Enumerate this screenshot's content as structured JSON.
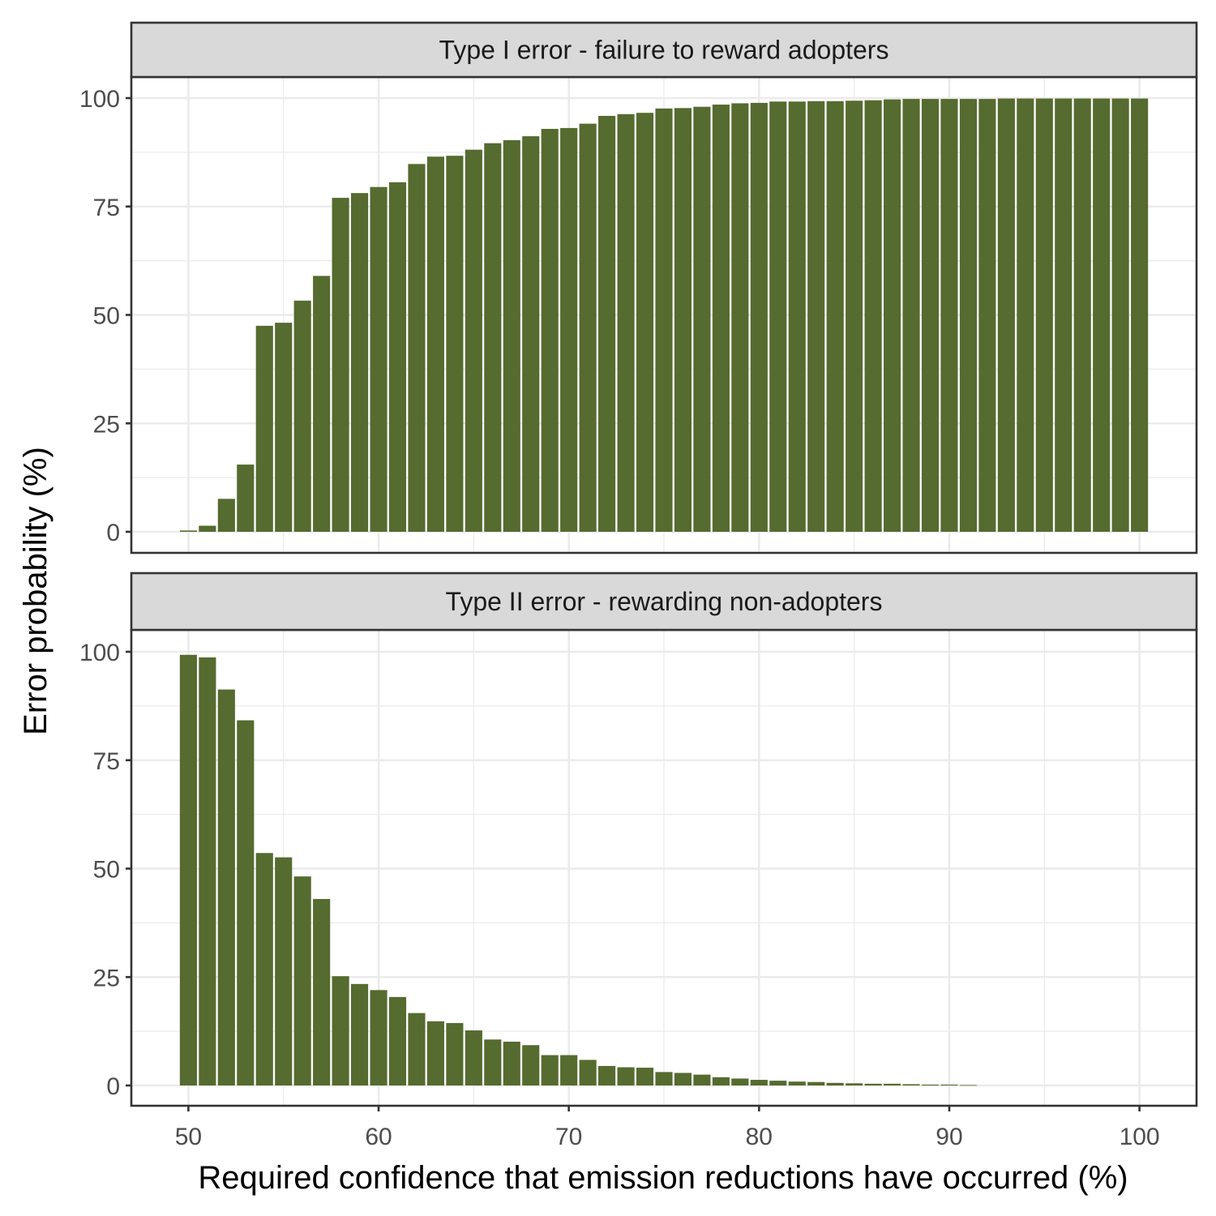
{
  "chart_data": {
    "type": "bar",
    "xlabel": "Required confidence that emission reductions have occurred (%)",
    "ylabel": "Error probability (%)",
    "xlim": [
      47,
      103
    ],
    "ylim": [
      0,
      100
    ],
    "x_ticks": [
      50,
      60,
      70,
      80,
      90,
      100
    ],
    "y_ticks": [
      0,
      25,
      50,
      75,
      100
    ],
    "grid": true,
    "bar_color": "#556b2f",
    "x": [
      50,
      51,
      52,
      53,
      54,
      55,
      56,
      57,
      58,
      59,
      60,
      61,
      62,
      63,
      64,
      65,
      66,
      67,
      68,
      69,
      70,
      71,
      72,
      73,
      74,
      75,
      76,
      77,
      78,
      79,
      80,
      81,
      82,
      83,
      84,
      85,
      86,
      87,
      88,
      89,
      90,
      91,
      92,
      93,
      94,
      95,
      96,
      97,
      98,
      99,
      100
    ],
    "panels": [
      {
        "strip": "Type I error - failure to reward adopters",
        "values": [
          0.3,
          1.4,
          7.6,
          15.5,
          47.5,
          48.2,
          53.3,
          59.0,
          77.0,
          78.1,
          79.5,
          80.6,
          84.8,
          86.5,
          86.7,
          88.1,
          89.6,
          90.3,
          91.2,
          92.9,
          93.1,
          94.1,
          95.9,
          96.3,
          96.6,
          97.6,
          97.7,
          98.0,
          98.5,
          98.8,
          98.9,
          99.2,
          99.2,
          99.3,
          99.3,
          99.4,
          99.5,
          99.7,
          99.8,
          99.8,
          99.8,
          99.8,
          99.8,
          99.9,
          99.9,
          99.9,
          99.9,
          99.9,
          99.9,
          99.9,
          99.9
        ]
      },
      {
        "strip": "Type II error - rewarding non-adopters",
        "values": [
          99.3,
          98.7,
          91.3,
          84.2,
          53.6,
          52.6,
          48.2,
          43.0,
          25.2,
          23.4,
          22.0,
          20.4,
          16.7,
          14.8,
          14.4,
          12.7,
          10.6,
          10.1,
          9.3,
          7.0,
          7.0,
          5.9,
          4.5,
          4.2,
          4.1,
          3.1,
          2.9,
          2.5,
          1.9,
          1.6,
          1.3,
          1.1,
          0.9,
          0.8,
          0.6,
          0.5,
          0.4,
          0.4,
          0.3,
          0.2,
          0.2,
          0.1,
          0,
          0,
          0,
          0,
          0,
          0,
          0,
          0,
          0
        ]
      }
    ]
  }
}
